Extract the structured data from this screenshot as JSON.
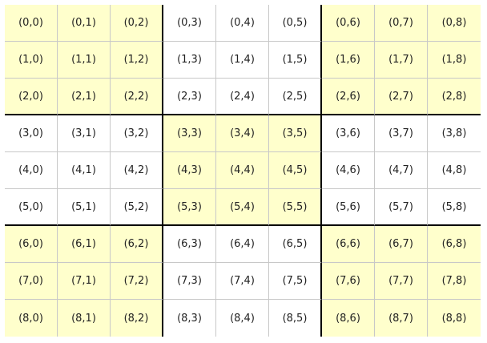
{
  "grid": {
    "rows": [
      [
        "(0,0)",
        "(0,1)",
        "(0,2)",
        "(0,3)",
        "(0,4)",
        "(0,5)",
        "(0,6)",
        "(0,7)",
        "(0,8)"
      ],
      [
        "(1,0)",
        "(1,1)",
        "(1,2)",
        "(1,3)",
        "(1,4)",
        "(1,5)",
        "(1,6)",
        "(1,7)",
        "(1,8)"
      ],
      [
        "(2,0)",
        "(2,1)",
        "(2,2)",
        "(2,3)",
        "(2,4)",
        "(2,5)",
        "(2,6)",
        "(2,7)",
        "(2,8)"
      ],
      [
        "(3,0)",
        "(3,1)",
        "(3,2)",
        "(3,3)",
        "(3,4)",
        "(3,5)",
        "(3,6)",
        "(3,7)",
        "(3,8)"
      ],
      [
        "(4,0)",
        "(4,1)",
        "(4,2)",
        "(4,3)",
        "(4,4)",
        "(4,5)",
        "(4,6)",
        "(4,7)",
        "(4,8)"
      ],
      [
        "(5,0)",
        "(5,1)",
        "(5,2)",
        "(5,3)",
        "(5,4)",
        "(5,5)",
        "(5,6)",
        "(5,7)",
        "(5,8)"
      ],
      [
        "(6,0)",
        "(6,1)",
        "(6,2)",
        "(6,3)",
        "(6,4)",
        "(6,5)",
        "(6,6)",
        "(6,7)",
        "(6,8)"
      ],
      [
        "(7,0)",
        "(7,1)",
        "(7,2)",
        "(7,3)",
        "(7,4)",
        "(7,5)",
        "(7,6)",
        "(7,7)",
        "(7,8)"
      ],
      [
        "(8,0)",
        "(8,1)",
        "(8,2)",
        "(8,3)",
        "(8,4)",
        "(8,5)",
        "(8,6)",
        "(8,7)",
        "(8,8)"
      ]
    ],
    "shaded_boxes": [
      [
        0,
        0
      ],
      [
        0,
        2
      ],
      [
        1,
        1
      ],
      [
        2,
        0
      ],
      [
        2,
        2
      ]
    ],
    "colors": {
      "shaded": "#ffffcc",
      "plain": "#ffffff",
      "box_border": "#000000",
      "cell_border": "#c8c8c8"
    }
  }
}
